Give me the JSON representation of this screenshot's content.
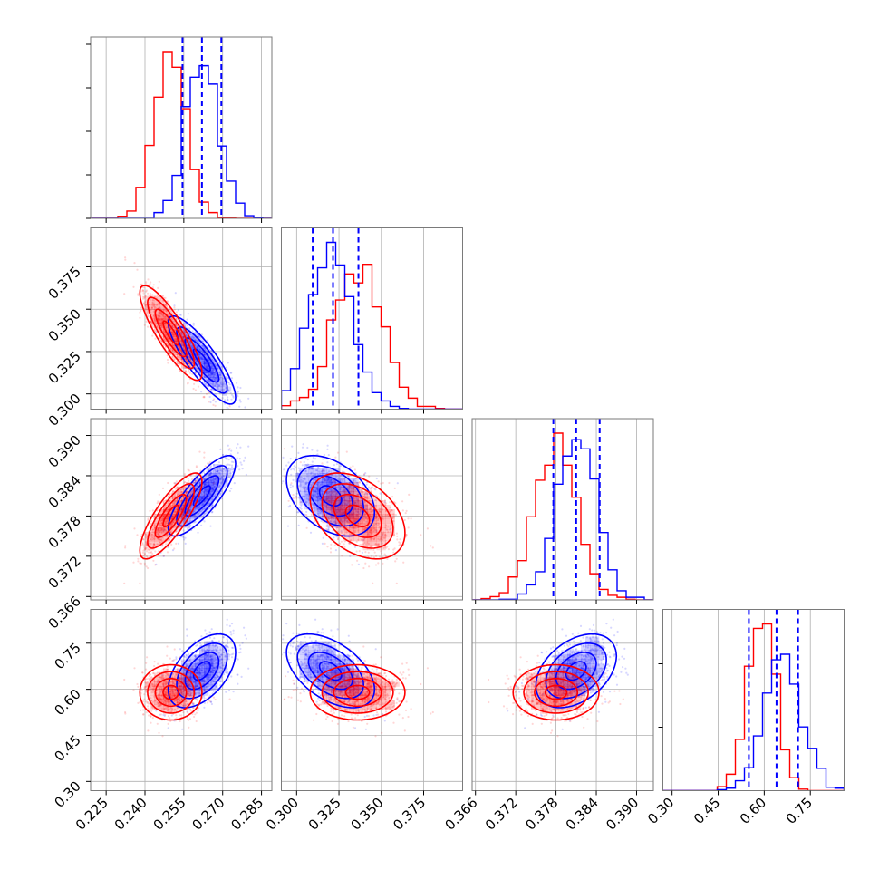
{
  "figure": {
    "type": "corner-plot",
    "background": "#ffffff",
    "grid": true,
    "series_colors": [
      "#0000ff",
      "#ff0000"
    ],
    "quantile_line_color": "#0000ff",
    "quantile_line_style": "dashed"
  },
  "chart_data": {
    "type": "corner",
    "parameters": [
      {
        "ticks": [
          0.225,
          0.24,
          0.255,
          0.27,
          0.285
        ],
        "tick_labels": [
          "0.225",
          "0.240",
          "0.255",
          "0.270",
          "0.285"
        ],
        "range": [
          0.219,
          0.289
        ]
      },
      {
        "ticks": [
          0.3,
          0.325,
          0.35,
          0.375
        ],
        "tick_labels": [
          "0.300",
          "0.325",
          "0.350",
          "0.375"
        ],
        "range": [
          0.291,
          0.398
        ]
      },
      {
        "ticks": [
          0.366,
          0.372,
          0.378,
          0.384,
          0.39
        ],
        "tick_labels": [
          "0.366",
          "0.372",
          "0.378",
          "0.384",
          "0.390"
        ],
        "range": [
          0.3655,
          0.3925
        ]
      },
      {
        "ticks": [
          0.3,
          0.45,
          0.6,
          0.75
        ],
        "tick_labels": [
          "0.30",
          "0.45",
          "0.60",
          "0.75"
        ],
        "range": [
          0.27,
          0.86
        ]
      }
    ],
    "series": [
      {
        "color": "#0000ff",
        "means": [
          0.262,
          0.32,
          0.381,
          0.66
        ],
        "stds": [
          0.0065,
          0.013,
          0.003,
          0.06
        ],
        "corr": [
          [
            1,
            -0.85,
            0.8,
            0.5
          ],
          [
            -0.85,
            1,
            -0.4,
            -0.5
          ],
          [
            0.8,
            -0.4,
            1,
            0.4
          ],
          [
            0.5,
            -0.5,
            0.4,
            1
          ]
        ],
        "quantiles": [
          [
            0.2545,
            0.262,
            0.2695
          ],
          [
            0.3095,
            0.3215,
            0.3365
          ],
          [
            0.3776,
            0.381,
            0.3845
          ],
          [
            0.55,
            0.64,
            0.71
          ]
        ]
      },
      {
        "color": "#ff0000",
        "means": [
          0.25,
          0.336,
          0.378,
          0.59
        ],
        "stds": [
          0.006,
          0.014,
          0.0032,
          0.045
        ],
        "corr": [
          [
            1,
            -0.85,
            0.8,
            0.0
          ],
          [
            -0.85,
            1,
            -0.4,
            0.0
          ],
          [
            0.8,
            -0.4,
            1,
            0.0
          ],
          [
            0.0,
            0.0,
            0.0,
            1
          ]
        ],
        "quantiles": null
      }
    ]
  }
}
